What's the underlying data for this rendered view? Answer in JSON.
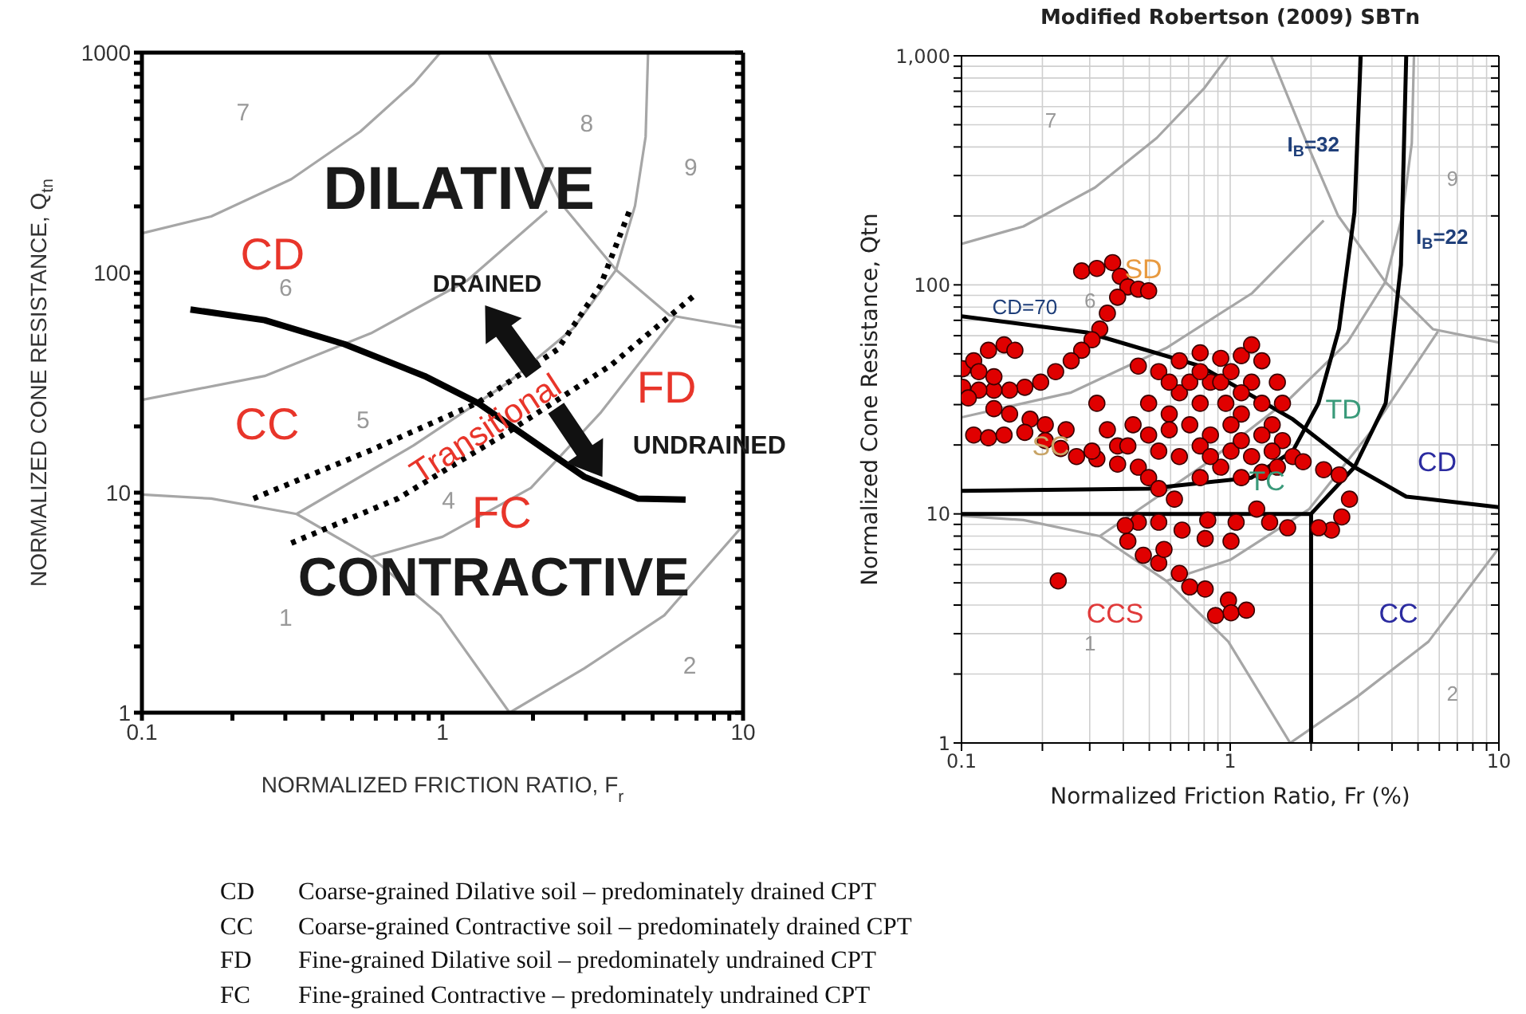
{
  "chart_data": [
    {
      "type": "line",
      "xlabel": "NORMALIZED FRICTION RATIO, F$_{r}$",
      "ylabel": "NORMALIZED CONE RESISTANCE, Q$_{tn}$",
      "log": "xy",
      "xlim": [
        0.1,
        10
      ],
      "ylim": [
        1,
        1000
      ],
      "xticks": [
        0.1,
        {
          "value": 0.2,
          "label": null
        },
        {
          "value": 0.3,
          "label": null
        },
        {
          "value": 0.4,
          "label": null
        },
        {
          "value": 0.5,
          "label": null
        },
        {
          "value": 0.6,
          "label": null
        },
        {
          "value": 0.7,
          "label": null
        },
        {
          "value": 0.8,
          "label": null
        },
        {
          "value": 0.9,
          "label": null
        },
        1,
        {
          "value": 2,
          "label": null
        },
        {
          "value": 3,
          "label": null
        },
        {
          "value": 4,
          "label": null
        },
        {
          "value": 5,
          "label": null
        },
        {
          "value": 6,
          "label": null
        },
        {
          "value": 7,
          "label": null
        },
        {
          "value": 8,
          "label": null
        },
        {
          "value": 9,
          "label": null
        },
        10
      ],
      "yticks": [
        1,
        {
          "value": 2,
          "label": null
        },
        {
          "value": 3,
          "label": null
        },
        {
          "value": 4,
          "label": null
        },
        {
          "value": 5,
          "label": null
        },
        {
          "value": 6,
          "label": null
        },
        {
          "value": 7,
          "label": null
        },
        {
          "value": 8,
          "label": null
        },
        {
          "value": 9,
          "label": null
        },
        10,
        {
          "value": 20,
          "label": null
        },
        {
          "value": 30,
          "label": null
        },
        {
          "value": 40,
          "label": null
        },
        {
          "value": 50,
          "label": null
        },
        {
          "value": 60,
          "label": null
        },
        {
          "value": 70,
          "label": null
        },
        {
          "value": 80,
          "label": null
        },
        {
          "value": 90,
          "label": null
        },
        100,
        {
          "value": 200,
          "label": null
        },
        {
          "value": 300,
          "label": null
        },
        {
          "value": 400,
          "label": null
        },
        {
          "value": 500,
          "label": null
        },
        {
          "value": 600,
          "label": null
        },
        {
          "value": 700,
          "label": null
        },
        {
          "value": 800,
          "label": null
        },
        {
          "value": 900,
          "label": null
        },
        1000
      ],
      "series": [
        {
          "color": "#a6a6a6",
          "x": [
            0.1,
            0.17,
            0.314,
            0.533,
            0.802,
            0.984
          ],
          "values": [
            151,
            180,
            266,
            438,
            724,
            1000
          ]
        },
        {
          "color": "#a6a6a6",
          "x": [
            0.1,
            0.256,
            0.578,
            1.207,
            2.228
          ],
          "values": [
            26.4,
            33.9,
            53,
            92,
            191
          ]
        },
        {
          "color": "#a6a6a6",
          "x": [
            1.42,
            1.968,
            2.517,
            3.78,
            5.69,
            10
          ],
          "values": [
            1000,
            393,
            201,
            103,
            64,
            56
          ]
        },
        {
          "color": "#a6a6a6",
          "x": [
            4.83,
            4.74,
            4.37,
            3.78,
            2.729,
            1.672,
            0.802,
            0.327
          ],
          "values": [
            1000,
            415,
            201,
            103,
            56,
            32,
            16.4,
            8
          ]
        },
        {
          "color": "#a6a6a6",
          "x": [
            0.1,
            0.17,
            0.327,
            0.578,
            0.984,
            1.672
          ],
          "values": [
            9.8,
            9.4,
            8,
            5.1,
            2.77,
            1
          ]
        },
        {
          "color": "#a6a6a6",
          "x": [
            5.93,
            3.35,
            1.968,
            1.0,
            0.578
          ],
          "values": [
            62.5,
            23,
            10.5,
            6.3,
            5.1
          ]
        },
        {
          "color": "#a6a6a6",
          "x": [
            1.672,
            2.965,
            5.47,
            10
          ],
          "values": [
            1,
            1.59,
            2.77,
            7.1
          ]
        },
        {
          "color": "#000000",
          "x": [
            0.145,
            0.256,
            0.472,
            0.871,
            1.309,
            1.968,
            2.965,
            4.46,
            6.44
          ],
          "values": [
            68,
            60.8,
            47.3,
            33.9,
            25.6,
            17.4,
            11.8,
            9.4,
            9.3
          ]
        },
        {
          "color": "#000000",
          "line_style": "dotted",
          "x": [
            0.235,
            0.578,
            1.309,
            2.415,
            3.35,
            4.19
          ],
          "values": [
            9.4,
            15.6,
            25.6,
            44.8,
            87,
            191
          ]
        },
        {
          "color": "#000000",
          "line_style": "dotted",
          "x": [
            0.314,
            0.71,
            1.607,
            3.63,
            6.98
          ],
          "values": [
            5.9,
            9.4,
            18.4,
            37.9,
            80
          ]
        }
      ],
      "annotations": [
        "7",
        "8",
        "9",
        "6",
        "5",
        "4",
        "1",
        "2",
        "DILATIVE",
        "CONTRACTIVE",
        "CD",
        "CC",
        "FD",
        "FC",
        "DRAINED",
        "UNDRAINED",
        "Transitional",
        "CD Coarse-grained Dilative soil – predominately drained CPT",
        "CC Coarse-grained Contractive soil – predominately drained CPT",
        "FD Fine-grained Dilative soil – predominately undrained CPT",
        "FC Fine-grained Contractive – predominately undrained CPT"
      ]
    },
    {
      "type": "line",
      "title": "Modified Robertson (2009) SBTn",
      "xlabel": "Normalized Friction Ratio, Fr (%)",
      "ylabel": "Normalized Cone Resistance, Qtn",
      "log": "xy",
      "grid": true,
      "xlim": [
        0.1,
        10
      ],
      "ylim": [
        1,
        1000
      ],
      "xticks": [
        0.1,
        {
          "value": 0.2,
          "label": null
        },
        {
          "value": 0.3,
          "label": null
        },
        {
          "value": 0.4,
          "label": null
        },
        {
          "value": 0.5,
          "label": null
        },
        {
          "value": 0.6,
          "label": null
        },
        {
          "value": 0.7,
          "label": null
        },
        {
          "value": 0.8,
          "label": null
        },
        {
          "value": 0.9,
          "label": null
        },
        1,
        {
          "value": 2,
          "label": null
        },
        {
          "value": 3,
          "label": null
        },
        {
          "value": 4,
          "label": null
        },
        {
          "value": 5,
          "label": null
        },
        {
          "value": 6,
          "label": null
        },
        {
          "value": 7,
          "label": null
        },
        {
          "value": 8,
          "label": null
        },
        {
          "value": 9,
          "label": null
        },
        10
      ],
      "yticks": [
        1,
        {
          "value": 2,
          "label": null
        },
        {
          "value": 3,
          "label": null
        },
        {
          "value": 4,
          "label": null
        },
        {
          "value": 5,
          "label": null
        },
        {
          "value": 6,
          "label": null
        },
        {
          "value": 7,
          "label": null
        },
        {
          "value": 8,
          "label": null
        },
        {
          "value": 9,
          "label": null
        },
        10,
        {
          "value": 20,
          "label": null
        },
        {
          "value": 30,
          "label": null
        },
        {
          "value": 40,
          "label": null
        },
        {
          "value": 50,
          "label": null
        },
        {
          "value": 60,
          "label": null
        },
        {
          "value": 70,
          "label": null
        },
        {
          "value": 80,
          "label": null
        },
        {
          "value": 90,
          "label": null
        },
        100,
        {
          "value": 200,
          "label": null
        },
        {
          "value": 300,
          "label": null
        },
        {
          "value": 400,
          "label": null
        },
        {
          "value": 500,
          "label": null
        },
        {
          "value": 600,
          "label": null
        },
        {
          "value": 700,
          "label": null
        },
        {
          "value": 800,
          "label": null
        },
        {
          "value": 900,
          "label": null
        },
        {
          "value": 1000,
          "label": "1,000"
        }
      ],
      "series": [
        {
          "type": "line",
          "color": "#a6a6a6",
          "x": [
            0.1,
            0.17,
            0.314,
            0.533,
            0.802,
            0.984
          ],
          "values": [
            151,
            180,
            266,
            438,
            724,
            1000
          ]
        },
        {
          "type": "line",
          "color": "#a6a6a6",
          "x": [
            0.1,
            0.256,
            0.578,
            1.207,
            2.228
          ],
          "values": [
            26.4,
            33.9,
            53,
            92,
            191
          ]
        },
        {
          "type": "line",
          "color": "#a6a6a6",
          "x": [
            1.42,
            1.968,
            2.517,
            3.78,
            5.69,
            10
          ],
          "values": [
            1000,
            393,
            201,
            103,
            64,
            56
          ]
        },
        {
          "type": "line",
          "color": "#a6a6a6",
          "x": [
            4.83,
            4.74,
            4.37,
            3.78,
            2.729,
            1.672,
            0.802,
            0.327
          ],
          "values": [
            1000,
            415,
            201,
            103,
            56,
            32,
            16.4,
            8
          ]
        },
        {
          "type": "line",
          "color": "#a6a6a6",
          "x": [
            0.1,
            0.17,
            0.327,
            0.578,
            0.984,
            1.672
          ],
          "values": [
            9.8,
            9.4,
            8,
            5.1,
            2.77,
            1
          ]
        },
        {
          "type": "line",
          "color": "#a6a6a6",
          "x": [
            5.93,
            3.35,
            1.968,
            1.0,
            0.578
          ],
          "values": [
            62.5,
            23,
            10.5,
            6.3,
            5.1
          ]
        },
        {
          "type": "line",
          "color": "#a6a6a6",
          "x": [
            1.672,
            2.965,
            5.47,
            10
          ],
          "values": [
            1,
            1.59,
            2.77,
            7.1
          ]
        },
        {
          "color": "#000000",
          "x": [
            0.1,
            0.292,
            0.773,
            1.71,
            2.9,
            4.52,
            10
          ],
          "values": [
            73,
            62,
            44.2,
            25.9,
            16,
            11.9,
            10.7
          ]
        },
        {
          "color": "#000000",
          "x": [
            3.06,
            2.9,
            2.54,
            2.13,
            1.71,
            1.2,
            0.497,
            0.1
          ],
          "values": [
            1000,
            207,
            64,
            30.4,
            18.8,
            14.4,
            12.9,
            12.6
          ]
        },
        {
          "color": "#000000",
          "x": [
            0.1,
            2,
            2.9,
            3.79,
            4.32,
            4.52
          ],
          "values": [
            10,
            10,
            16,
            30.4,
            122,
            1000
          ]
        },
        {
          "color": "#000000",
          "x": [
            2,
            2
          ],
          "values": [
            10,
            1
          ]
        },
        {
          "type": "scatter",
          "color": "#e00000",
          "marker": "circle",
          "x": [
            0.28,
            0.319,
            0.365,
            0.39,
            0.416,
            0.455,
            0.497,
            0.381,
            0.349,
            0.327,
            0.306,
            0.28,
            0.256,
            0.224,
            0.197,
            0.172,
            0.151,
            0.132,
            0.116,
            0.101,
            0.101,
            0.111,
            0.126,
            0.144,
            0.158,
            0.132,
            0.116,
            0.106,
            0.132,
            0.151,
            0.18,
            0.205,
            0.245,
            0.111,
            0.126,
            0.144,
            0.172,
            0.205,
            0.234,
            0.268,
            0.319,
            0.381,
            0.306,
            0.319,
            0.349,
            0.381,
            0.455,
            0.542,
            0.647,
            0.773,
            0.922,
            1.1,
            1.201,
            1.312,
            1.498,
            1.565,
            1.433,
            1.565,
            1.71,
            1.498,
            1.201,
            1.007,
            0.844,
            0.707,
            0.593,
            0.497,
            0.435,
            0.416,
            0.455,
            0.497,
            0.542,
            0.62,
            0.773,
            0.922,
            1.1,
            1.312,
            0.773,
            0.963,
            1.1,
            1.201,
            0.844,
            0.647,
            0.542,
            1.868,
            2.228,
            2.545,
            2.779,
            2.601,
            2.382,
            2.133,
            1.636,
            1.402,
            1.255,
            1.052,
            0.825,
            0.807,
            0.662,
            0.542,
            0.455,
            0.407,
            0.416,
            0.475,
            0.542,
            0.567,
            0.647,
            0.707,
            0.807,
            0.985,
            1.007,
            1.149,
            0.882,
            0.229,
            1.007,
            0.707,
            0.922,
            1.007,
            0.773,
            0.593,
            1.1,
            1.312,
            1.312,
            1.007,
            0.773,
            0.647,
            0.844,
            1.1,
            1.433,
            0.497,
            0.593
          ],
          "values": [
            115,
            118,
            125,
            109,
            98,
            95.7,
            94.1,
            88.3,
            75.2,
            64.1,
            57.6,
            51.8,
            46.6,
            41.8,
            37.6,
            35.7,
            34.7,
            34.7,
            34.7,
            35.7,
            43,
            46.6,
            51.8,
            54.7,
            51.8,
            39.7,
            41.8,
            32.1,
            28.8,
            27.3,
            25.9,
            24.5,
            23.3,
            22.1,
            21.5,
            22.1,
            22.7,
            20.9,
            19.3,
            17.8,
            17.4,
            16.5,
            18.8,
            30.4,
            23.3,
            19.8,
            44.2,
            41.8,
            46.6,
            50.5,
            47.8,
            49.1,
            54.7,
            46.6,
            37.6,
            30.4,
            24.5,
            20.9,
            17.8,
            16,
            17.8,
            18.8,
            22.1,
            24.5,
            27.3,
            30.4,
            24.5,
            19.8,
            16,
            14.4,
            12.9,
            11.6,
            14.4,
            16,
            14.4,
            15.2,
            30.4,
            30.4,
            27.3,
            37.6,
            37.6,
            33.8,
            18.8,
            16.9,
            15.6,
            14.8,
            11.6,
            9.7,
            8.5,
            8.7,
            8.7,
            9.2,
            10.5,
            9.2,
            9.4,
            7.8,
            8.5,
            9.2,
            9.2,
            8.9,
            7.6,
            6.6,
            6.1,
            7,
            5.5,
            4.8,
            4.7,
            4.2,
            3.7,
            3.8,
            3.6,
            5.1,
            7.6,
            37.6,
            37.6,
            41.8,
            41.8,
            37.6,
            33.8,
            30.4,
            22.1,
            24.5,
            19.8,
            17.8,
            17.8,
            20.9,
            18.8,
            22.1,
            23.3
          ]
        }
      ],
      "annotations": [
        "I$_{B}$=32",
        "I$_{B}$=22",
        "CD=70",
        "SD",
        "SC",
        "TD",
        "TC",
        "CD",
        "CCS",
        "CC",
        "7",
        "9",
        "6",
        "1",
        "2"
      ]
    }
  ]
}
